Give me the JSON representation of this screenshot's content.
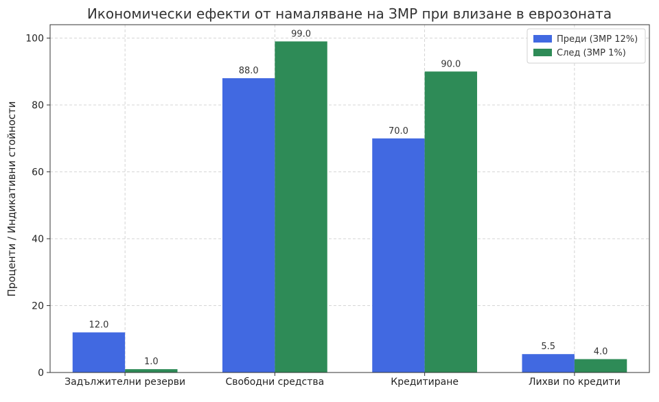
{
  "chart_data": {
    "type": "bar",
    "title": "Икономически ефекти от намаляване на ЗМР при влизане в еврозоната",
    "xlabel": "",
    "ylabel": "Проценти / Индикативни стойности",
    "categories": [
      "Задължителни резерви",
      "Свободни средства",
      "Кредитиране",
      "Лихви по кредити"
    ],
    "series": [
      {
        "name": "Преди (ЗМР 12%)",
        "values": [
          12.0,
          88.0,
          70.0,
          5.5
        ],
        "labels": [
          "12.0",
          "88.0",
          "70.0",
          "5.5"
        ],
        "color": "#4169e1"
      },
      {
        "name": "След (ЗМР 1%)",
        "values": [
          1.0,
          99.0,
          90.0,
          4.0
        ],
        "labels": [
          "1.0",
          "99.0",
          "90.0",
          "4.0"
        ],
        "color": "#2e8b57"
      }
    ],
    "ylim": [
      0,
      104
    ],
    "yticks": [
      "0",
      "20",
      "40",
      "60",
      "80",
      "100"
    ],
    "grid": true,
    "legend": "top-right"
  }
}
